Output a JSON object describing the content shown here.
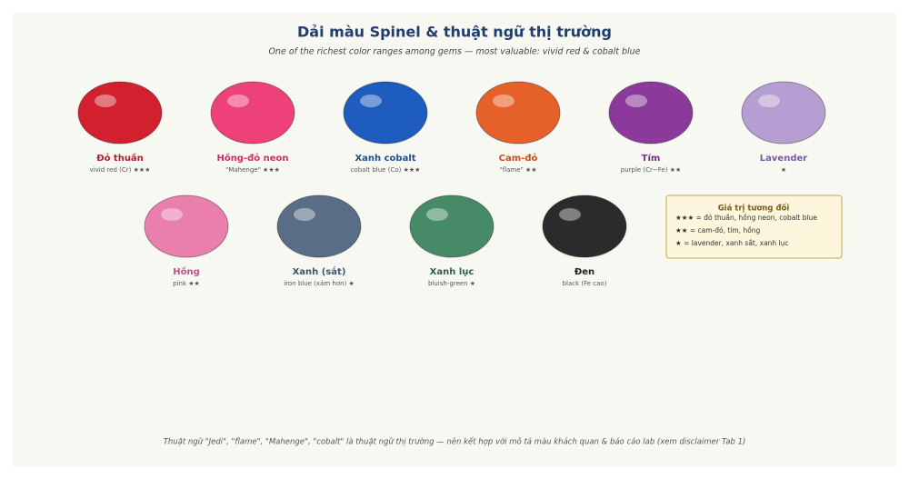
{
  "header": {
    "title": "Dải màu Spinel & thuật ngữ thị trường",
    "subtitle": "One of the richest color ranges among gems — most valuable: vivid red & cobalt blue"
  },
  "gems": [
    {
      "name": "Đỏ thuần",
      "description": "vivid red (Cr) ★★★",
      "color": "#d3202e",
      "label_color": "#a8232c"
    },
    {
      "name": "Hồng-đỏ neon",
      "description": "\"Mahenge\" ★★★",
      "color": "#ee4079",
      "label_color": "#c83066"
    },
    {
      "name": "Xanh cobalt",
      "description": "cobalt blue (Co) ★★★",
      "color": "#1f5cc0",
      "label_color": "#1f4e8c"
    },
    {
      "name": "Cam-đỏ",
      "description": "\"flame\" ★★",
      "color": "#e6602a",
      "label_color": "#c4501e"
    },
    {
      "name": "Tím",
      "description": "purple (Cr−Fe) ★★",
      "color": "#8b3a9c",
      "label_color": "#7a2e8a"
    },
    {
      "name": "Lavender",
      "description": "★",
      "color": "#b69ed2",
      "label_color": "#7a5aa0"
    },
    {
      "name": "Hồng",
      "description": "pink ★★",
      "color": "#ea7eac",
      "label_color": "#c0508a"
    },
    {
      "name": "Xanh (sắt)",
      "description": "iron blue (xám hơn) ★",
      "color": "#5a6d87",
      "label_color": "#3e5472"
    },
    {
      "name": "Xanh lục",
      "description": "bluish-green ★",
      "color": "#478a68",
      "label_color": "#2e6040"
    },
    {
      "name": "Đen",
      "description": "black (Fe cao)",
      "color": "#2b2b2b",
      "label_color": "#222222"
    }
  ],
  "legend": {
    "title": "Giá trị tương đối",
    "lines": [
      "★★★ = đỏ thuần, hồng neon, cobalt blue",
      "★★ = cam-đỏ, tím, hồng",
      "★ = lavender, xanh sắt, xanh lục"
    ]
  },
  "footer": "Thuật ngữ \"Jedi\", \"flame\", \"Mahenge\", \"cobalt\" là thuật ngữ thị trường — nên kết hợp với mô tả màu khách quan & báo cáo lab (xem disclaimer Tab 1)"
}
